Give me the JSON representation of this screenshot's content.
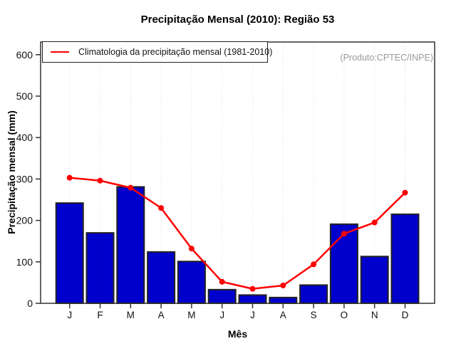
{
  "title": "Precipitação Mensal (2010): Região 53",
  "watermark": "(Produto:CPTEC/INPE)",
  "legend": {
    "label": "Climatologia da precipitação mensal (1981-2010)"
  },
  "colors": {
    "bar_fill": "#0000CD",
    "bar_stroke": "#222222",
    "line": "#FF0000",
    "grid": "#D9D9D9",
    "axis": "#333333",
    "watermark_text": "#999999"
  },
  "chart_data": {
    "type": "bar",
    "title": "Precipitação Mensal (2010): Região 53",
    "xlabel": "Mês",
    "ylabel": "Precipitação mensal (mm)",
    "categories": [
      "J",
      "F",
      "M",
      "A",
      "M",
      "J",
      "J",
      "A",
      "S",
      "O",
      "N",
      "D"
    ],
    "series": [
      {
        "name": "Precipitação mensal 2010",
        "type": "bar",
        "values": [
          242,
          170,
          281,
          124,
          101,
          33,
          20,
          14,
          44,
          191,
          113,
          215
        ]
      },
      {
        "name": "Climatologia da precipitação mensal (1981-2010)",
        "type": "line",
        "values": [
          303,
          296,
          279,
          230,
          132,
          52,
          35,
          43,
          94,
          168,
          195,
          267
        ]
      }
    ],
    "ylim": [
      0,
      600
    ],
    "yticks": [
      0,
      100,
      200,
      300,
      400,
      500,
      600
    ],
    "grid": "vertical-dotted",
    "legend_position": "top-left"
  }
}
